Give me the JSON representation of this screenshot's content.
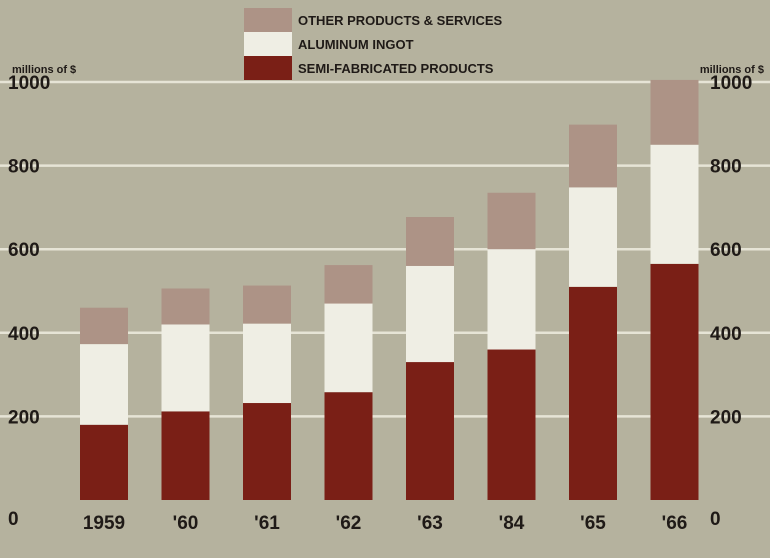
{
  "chart_data": {
    "type": "bar",
    "stacked": true,
    "categories": [
      "1959",
      "'60",
      "'61",
      "'62",
      "'63",
      "'84",
      "'65",
      "'66"
    ],
    "series": [
      {
        "name": "SEMI-FABRICATED PRODUCTS",
        "color": "#7a1f16",
        "values": [
          180,
          212,
          232,
          258,
          330,
          360,
          510,
          565
        ]
      },
      {
        "name": "ALUMINUM INGOT",
        "color": "#efeee4",
        "values": [
          193,
          208,
          190,
          212,
          230,
          240,
          238,
          285
        ]
      },
      {
        "name": "OTHER PRODUCTS & SERVICES",
        "color": "#ad9386",
        "values": [
          87,
          86,
          91,
          92,
          117,
          135,
          150,
          155
        ]
      }
    ],
    "legend_order": [
      "OTHER PRODUCTS & SERVICES",
      "ALUMINUM INGOT",
      "SEMI-FABRICATED PRODUCTS"
    ],
    "ylabel_left": "millions of $",
    "ylabel_right": "millions of $",
    "yticks": [
      "0",
      "200",
      "400",
      "600",
      "800",
      "1000"
    ],
    "ylim": [
      0,
      1000
    ],
    "grid": true,
    "legend_position": "top-center",
    "colors": {
      "background": "#b5b29e",
      "gridline": "#e6e4d6",
      "text": "#1f1a17"
    }
  }
}
